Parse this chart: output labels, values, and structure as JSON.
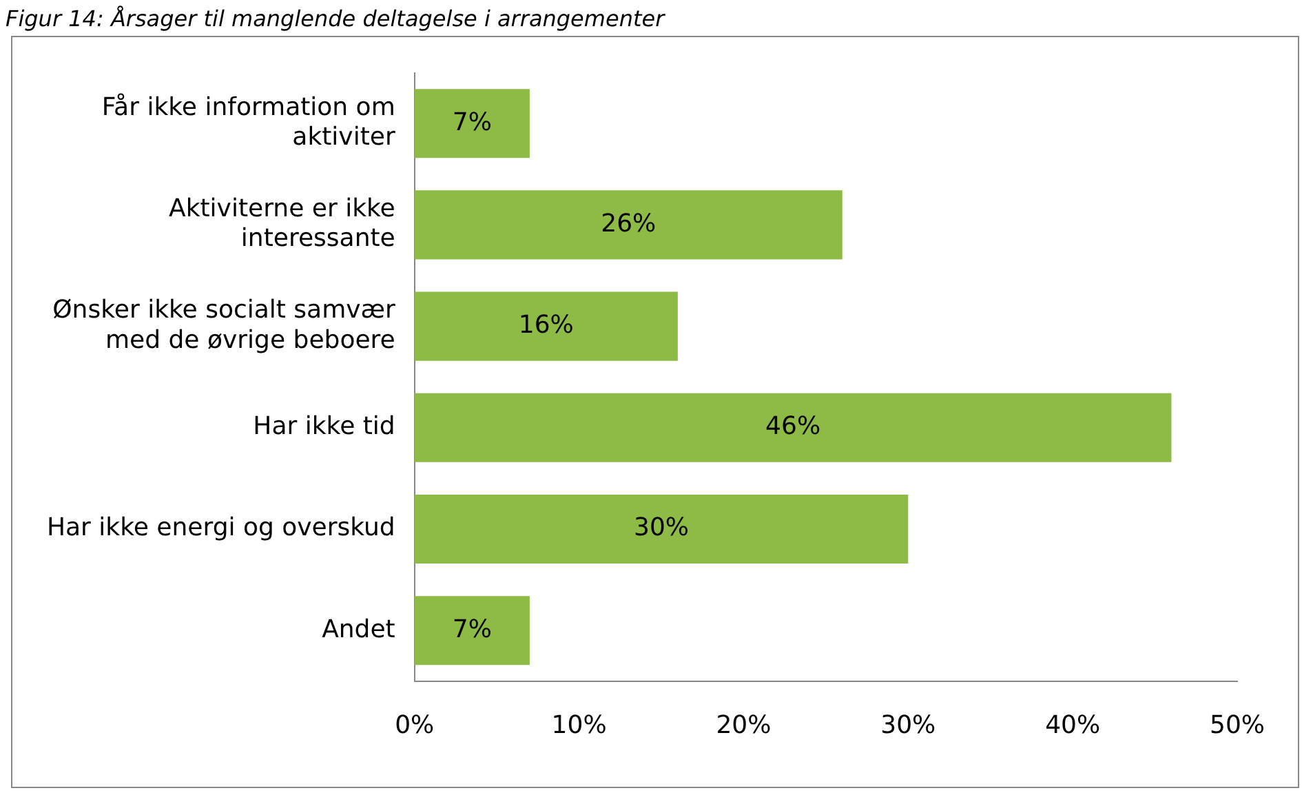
{
  "chart_data": {
    "type": "bar",
    "orientation": "horizontal",
    "title": "Figur 14: Årsager til manglende deltagelse i arrangementer",
    "categories": [
      "Får ikke information om aktiviter",
      "Aktiviterne er ikke interessante",
      "Ønsker ikke socialt samvær med de øvrige beboere",
      "Har ikke tid",
      "Har ikke energi og overskud",
      "Andet"
    ],
    "values": [
      7,
      26,
      16,
      46,
      30,
      7
    ],
    "value_labels": [
      "7%",
      "26%",
      "16%",
      "46%",
      "30%",
      "7%"
    ],
    "color": "#8dbb45",
    "xlim": [
      0,
      50
    ],
    "xticks": [
      {
        "value": 0,
        "label": "0%"
      },
      {
        "value": 10,
        "label": "10%"
      },
      {
        "value": 20,
        "label": "20%"
      },
      {
        "value": 30,
        "label": "30%"
      },
      {
        "value": 40,
        "label": "40%"
      },
      {
        "value": 50,
        "label": "50%"
      }
    ],
    "grid": false,
    "legend": false
  }
}
